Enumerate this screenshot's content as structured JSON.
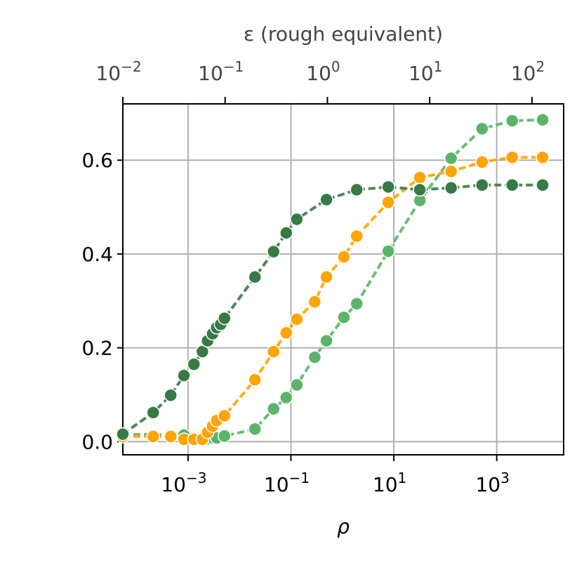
{
  "chart_data": {
    "type": "line",
    "xlabel": "ρ",
    "x2label": "ε (rough equivalent)",
    "xscale": "log",
    "x2scale": "log",
    "xlim": [
      5.4e-05,
      20000
    ],
    "x2lim": [
      0.01,
      204
    ],
    "ylim": [
      -0.028,
      0.72
    ],
    "xticks": [
      {
        "value": 0.001,
        "label": "10^−3"
      },
      {
        "value": 0.1,
        "label": "10^−1"
      },
      {
        "value": 10,
        "label": "10^1"
      },
      {
        "value": 1000,
        "label": "10^3"
      }
    ],
    "x2ticks": [
      {
        "value": 0.01,
        "label": "10^−2"
      },
      {
        "value": 0.1,
        "label": "10^−1"
      },
      {
        "value": 1,
        "label": "10^0"
      },
      {
        "value": 10,
        "label": "10^1"
      },
      {
        "value": 100,
        "label": "10^2"
      }
    ],
    "yticks": [
      {
        "value": 0,
        "label": "0.0"
      },
      0.2,
      0.4,
      0.6
    ],
    "grid": true,
    "series": [
      {
        "color": "#5cb46b",
        "x": [
          5.4e-05,
          0.00083,
          0.0013,
          0.0019,
          0.0024,
          0.003,
          0.0036,
          0.0051,
          0.02,
          0.046,
          0.081,
          0.13,
          0.29,
          0.49,
          1.07,
          1.9,
          7.8,
          32,
          130,
          520,
          2000,
          7800
        ],
        "values": [
          0.016,
          0.014,
          0.006,
          0.006,
          0.006,
          0.008,
          0.008,
          0.012,
          0.027,
          0.07,
          0.094,
          0.121,
          0.18,
          0.215,
          0.265,
          0.294,
          0.406,
          0.514,
          0.604,
          0.667,
          0.684,
          0.686
        ]
      },
      {
        "color": "#ffa500",
        "x": [
          5.4e-05,
          0.00021,
          0.00046,
          0.00083,
          0.0013,
          0.0019,
          0.0024,
          0.003,
          0.0036,
          0.0051,
          0.02,
          0.046,
          0.081,
          0.13,
          0.29,
          0.49,
          1.07,
          1.9,
          7.8,
          32,
          130,
          520,
          2000,
          7800
        ],
        "values": [
          0.011,
          0.011,
          0.011,
          0.005,
          0.005,
          0.005,
          0.02,
          0.033,
          0.045,
          0.055,
          0.132,
          0.192,
          0.232,
          0.261,
          0.298,
          0.351,
          0.394,
          0.438,
          0.51,
          0.563,
          0.576,
          0.596,
          0.606,
          0.606
        ]
      },
      {
        "color": "#387a46",
        "x": [
          5.4e-05,
          0.00021,
          0.00046,
          0.00083,
          0.0013,
          0.0019,
          0.0024,
          0.003,
          0.0036,
          0.0043,
          0.0051,
          0.02,
          0.046,
          0.081,
          0.13,
          0.49,
          1.9,
          7.8,
          32,
          130,
          520,
          2000,
          7800
        ],
        "values": [
          0.016,
          0.062,
          0.099,
          0.141,
          0.165,
          0.192,
          0.215,
          0.23,
          0.243,
          0.25,
          0.263,
          0.351,
          0.405,
          0.445,
          0.474,
          0.516,
          0.537,
          0.543,
          0.537,
          0.541,
          0.547,
          0.547,
          0.547
        ]
      }
    ]
  }
}
